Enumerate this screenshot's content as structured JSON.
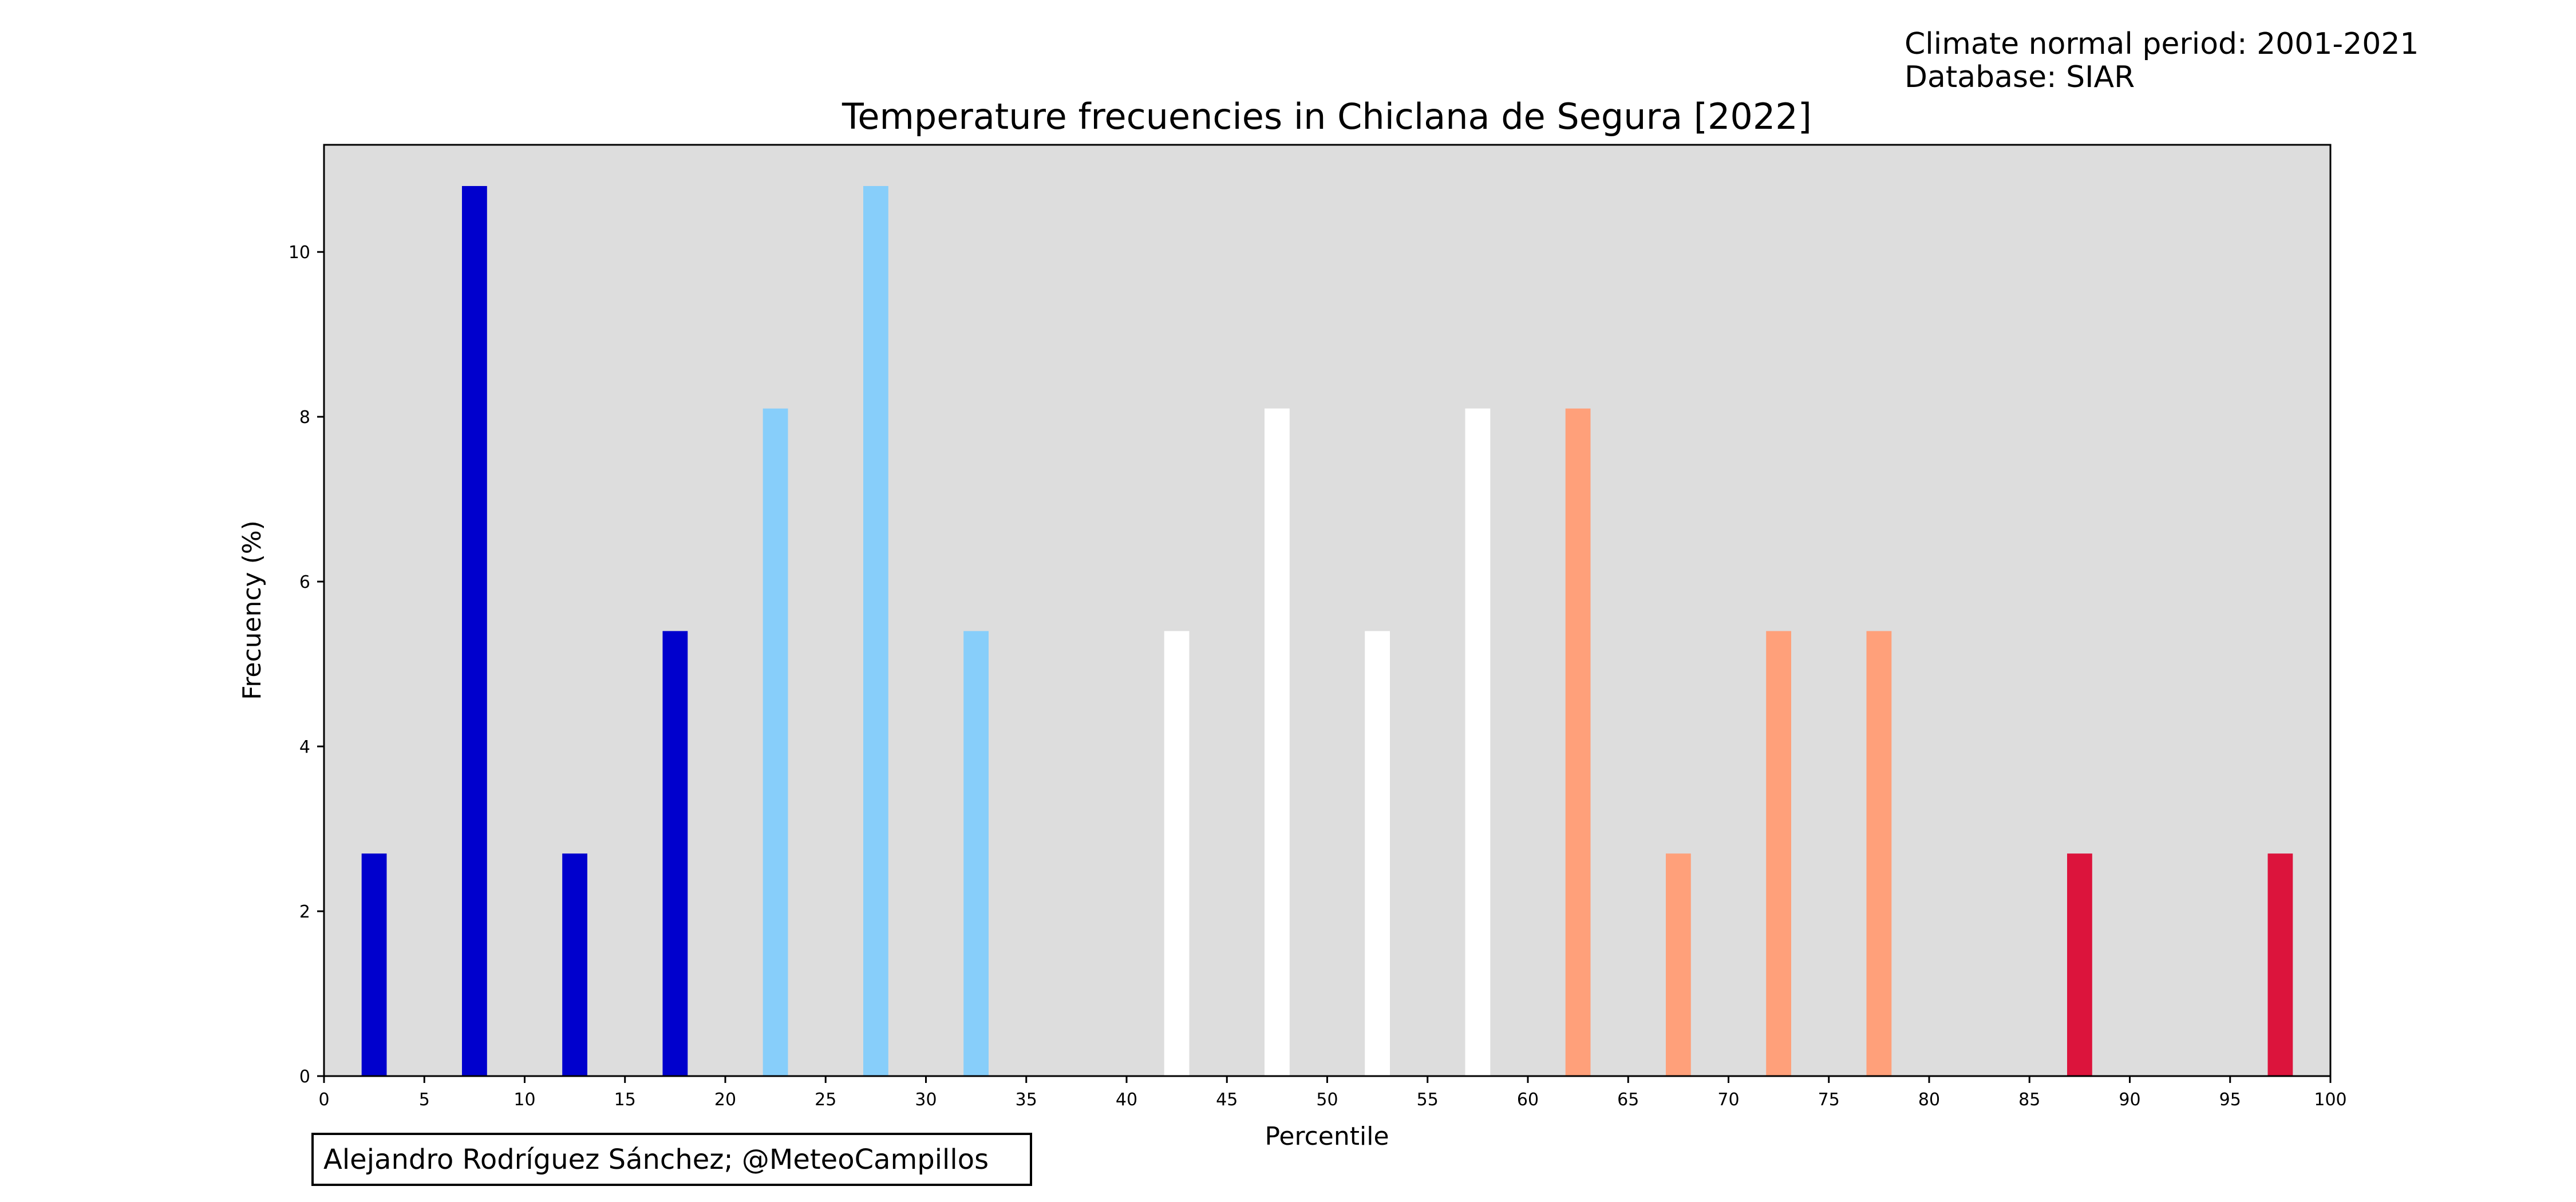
{
  "info": {
    "line1": "Climate normal period: 2001-2021",
    "line2": "Database: SIAR"
  },
  "credit": "Alejandro Rodríguez Sánchez; @MeteoCampillos",
  "colors": {
    "plot_background": "#dddddd",
    "very_cold": "#0000cd",
    "cold": "#87cefa",
    "normal": "#ffffff",
    "warm": "#ffa07a",
    "very_warm": "#dc143c"
  },
  "chart_data": {
    "type": "bar",
    "title": "Temperature frecuencies in Chiclana de Segura [2022]",
    "xlabel": "Percentile",
    "ylabel": "Frecuency (%)",
    "xlim": [
      0,
      100
    ],
    "ylim": [
      0,
      11.3
    ],
    "xticks": [
      "0",
      "5",
      "10",
      "15",
      "20",
      "25",
      "30",
      "35",
      "40",
      "45",
      "50",
      "55",
      "60",
      "65",
      "70",
      "75",
      "80",
      "85",
      "90",
      "95",
      "100"
    ],
    "yticks": [
      "0",
      "2",
      "4",
      "6",
      "8",
      "10"
    ],
    "bar_width": 1.25,
    "bars": [
      {
        "x": 2.5,
        "value": 2.7,
        "color": "#0000cd"
      },
      {
        "x": 7.5,
        "value": 10.8,
        "color": "#0000cd"
      },
      {
        "x": 12.5,
        "value": 2.7,
        "color": "#0000cd"
      },
      {
        "x": 17.5,
        "value": 5.4,
        "color": "#0000cd"
      },
      {
        "x": 22.5,
        "value": 8.1,
        "color": "#87cefa"
      },
      {
        "x": 27.5,
        "value": 10.8,
        "color": "#87cefa"
      },
      {
        "x": 32.5,
        "value": 5.4,
        "color": "#87cefa"
      },
      {
        "x": 37.5,
        "value": 0,
        "color": "#ffffff"
      },
      {
        "x": 42.5,
        "value": 5.4,
        "color": "#ffffff"
      },
      {
        "x": 47.5,
        "value": 8.1,
        "color": "#ffffff"
      },
      {
        "x": 52.5,
        "value": 5.4,
        "color": "#ffffff"
      },
      {
        "x": 57.5,
        "value": 8.1,
        "color": "#ffffff"
      },
      {
        "x": 62.5,
        "value": 8.1,
        "color": "#ffa07a"
      },
      {
        "x": 67.5,
        "value": 2.7,
        "color": "#ffa07a"
      },
      {
        "x": 72.5,
        "value": 5.4,
        "color": "#ffa07a"
      },
      {
        "x": 77.5,
        "value": 5.4,
        "color": "#ffa07a"
      },
      {
        "x": 82.5,
        "value": 0,
        "color": "#dc143c"
      },
      {
        "x": 87.5,
        "value": 2.7,
        "color": "#dc143c"
      },
      {
        "x": 92.5,
        "value": 0,
        "color": "#dc143c"
      },
      {
        "x": 97.5,
        "value": 2.7,
        "color": "#dc143c"
      }
    ],
    "grid": false,
    "legend": "none"
  }
}
